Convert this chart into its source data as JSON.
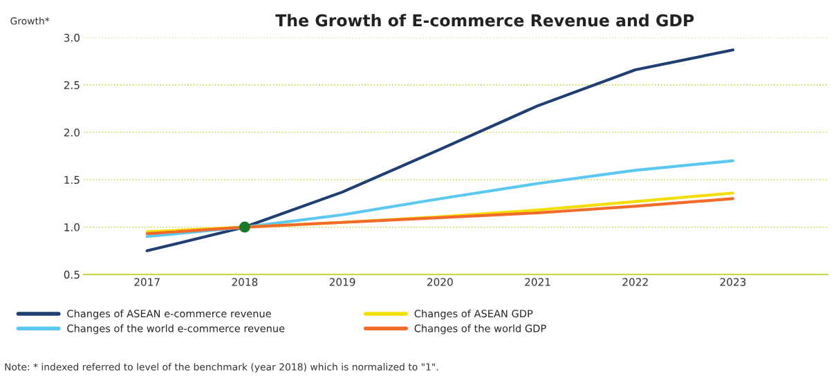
{
  "chart_data": {
    "type": "line",
    "title": "The Growth of E-commerce Revenue and GDP",
    "ylabel": "Growth*",
    "categories": [
      "2017",
      "2018",
      "2019",
      "2020",
      "2021",
      "2022",
      "2023"
    ],
    "series": [
      {
        "name": "Changes of ASEAN e-commerce revenue",
        "color": "#1f3f73",
        "values": [
          0.75,
          1.0,
          1.37,
          1.82,
          2.28,
          2.66,
          2.87
        ]
      },
      {
        "name": "Changes of the world e-commerce revenue",
        "color": "#5bc8f0",
        "values": [
          0.9,
          1.0,
          1.13,
          1.3,
          1.46,
          1.6,
          1.7
        ]
      },
      {
        "name": "Changes of ASEAN GDP",
        "color": "#f2df00",
        "values": [
          0.95,
          1.0,
          1.05,
          1.11,
          1.18,
          1.27,
          1.36
        ]
      },
      {
        "name": "Changes of the world GDP",
        "color": "#f26b2a",
        "values": [
          0.93,
          1.0,
          1.05,
          1.1,
          1.15,
          1.22,
          1.3
        ]
      },
      {
        "type": "scatter",
        "color": "#1a7a2a",
        "marker": "circle",
        "values": [
          null,
          1.0,
          null,
          null,
          null,
          null,
          null
        ]
      }
    ],
    "ylim": [
      0.5,
      3.0
    ],
    "yticks": [
      0.5,
      {
        "value": 1,
        "label": "1.0"
      },
      1.5,
      {
        "value": 2,
        "label": "2.0"
      },
      2.5,
      {
        "value": 3,
        "label": "3.0"
      }
    ],
    "grid": "y",
    "legend": "bottom",
    "marker": "none",
    "line_style": "solid",
    "annotations": [
      "Note: * indexed referred to level of the benchmark (year 2018) which is normalized to \"1\"."
    ]
  }
}
